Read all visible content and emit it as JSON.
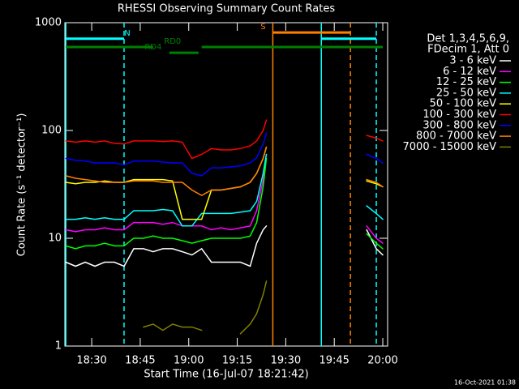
{
  "chart_data": {
    "type": "line",
    "title": "RHESSI Observing Summary Count Rates",
    "x_label": "Start Time (16-Jul-07 18:21:42)",
    "y_label": "Count Rate (s⁻¹ detector⁻¹)",
    "timestamp": "16-Oct-2021 01:38",
    "legend_title": [
      "Det 1,3,4,5,6,9,",
      "FDecim 1, Att 0"
    ],
    "y_scale": "log",
    "ylim": [
      1,
      1000
    ],
    "yticks": [
      1,
      10,
      100,
      1000
    ],
    "xlim": [
      "18:21:42",
      "20:01:30"
    ],
    "xticks": [
      "18:30",
      "18:45",
      "19:00",
      "19:15",
      "19:30",
      "19:45",
      "20:00"
    ],
    "x": [
      "18:22",
      "18:25",
      "18:28",
      "18:31",
      "18:34",
      "18:37",
      "18:40",
      "18:43",
      "18:46",
      "18:49",
      "18:52",
      "18:55",
      "18:58",
      "19:01",
      "19:04",
      "19:07",
      "19:10",
      "19:13",
      "19:16",
      "19:19",
      "19:21",
      "19:23",
      "19:24",
      "19:40",
      "19:55",
      "19:58",
      "20:00"
    ],
    "series": [
      {
        "name": "3 - 6 keV",
        "color": "#ffffff",
        "values": [
          6,
          5.5,
          6,
          5.5,
          6,
          6,
          5.5,
          8,
          8,
          7.5,
          8,
          8,
          7.5,
          7,
          8,
          6,
          6,
          6,
          6,
          5.5,
          9,
          12,
          13,
          null,
          12,
          8,
          7
        ]
      },
      {
        "name": "6 - 12 keV",
        "color": "#ff00ff",
        "values": [
          12,
          11.5,
          12,
          12,
          12.5,
          12,
          12,
          14,
          14,
          14,
          13.5,
          14,
          13,
          13,
          13,
          12,
          12.5,
          12,
          12.5,
          13,
          18,
          35,
          60,
          null,
          13,
          10,
          9
        ]
      },
      {
        "name": "12 - 25 keV",
        "color": "#00ff00",
        "values": [
          8.5,
          8,
          8.5,
          8.5,
          9,
          8.5,
          8.5,
          10,
          10,
          10.5,
          10,
          10,
          9.5,
          9,
          9.5,
          10,
          10,
          10,
          10,
          10.5,
          14,
          30,
          55,
          null,
          11,
          9,
          8
        ]
      },
      {
        "name": "25 - 50 keV",
        "color": "#00ffff",
        "values": [
          15,
          15,
          15.5,
          15,
          15.5,
          15,
          15,
          18,
          18,
          18,
          18.5,
          18,
          13,
          13,
          17,
          17,
          17,
          17,
          17.5,
          18,
          22,
          40,
          60,
          null,
          20,
          17,
          15
        ]
      },
      {
        "name": "50 - 100 keV",
        "color": "#ffff00",
        "values": [
          33,
          32,
          33,
          33,
          34,
          33,
          33,
          35,
          35,
          35,
          35,
          34,
          15,
          15,
          15,
          28,
          28,
          29,
          30,
          33,
          40,
          55,
          70,
          null,
          34,
          32,
          30
        ]
      },
      {
        "name": "100 - 300 keV",
        "color": "#ff0000",
        "values": [
          80,
          78,
          80,
          78,
          80,
          76,
          75,
          80,
          80,
          80,
          79,
          80,
          78,
          55,
          60,
          68,
          66,
          66,
          68,
          72,
          80,
          100,
          125,
          null,
          90,
          85,
          80
        ]
      },
      {
        "name": "300 - 800 keV",
        "color": "#0000ff",
        "values": [
          55,
          53,
          52,
          50,
          50,
          50,
          48,
          52,
          52,
          52,
          51,
          50,
          50,
          40,
          38,
          45,
          45,
          46,
          47,
          50,
          56,
          75,
          95,
          null,
          60,
          55,
          50
        ]
      },
      {
        "name": "800 - 7000 keV",
        "color": "#ff8000",
        "values": [
          38,
          36,
          35,
          34,
          33,
          33,
          33,
          34,
          34,
          34,
          33,
          33,
          33,
          28,
          25,
          28,
          28,
          29,
          30,
          33,
          40,
          55,
          70,
          null,
          35,
          33,
          30
        ]
      },
      {
        "name": "7000 - 15000 keV",
        "color": "#808000",
        "values": [
          null,
          null,
          null,
          null,
          null,
          null,
          null,
          null,
          1.5,
          1.6,
          1.4,
          1.6,
          1.5,
          1.5,
          1.4,
          null,
          null,
          null,
          1.3,
          1.6,
          2,
          3,
          4,
          null,
          null,
          null,
          null
        ]
      }
    ],
    "flags": [
      {
        "label": "N",
        "color": "#00ffff",
        "level": 710,
        "segments": [
          [
            "18:22",
            "18:40"
          ],
          [
            "19:41",
            "19:58"
          ]
        ],
        "label_at": "18:41"
      },
      {
        "label": "RD0",
        "color": "#008000",
        "level": 595,
        "segments": [
          [
            "18:22",
            "18:49"
          ],
          [
            "19:04",
            "20:00"
          ]
        ],
        "label_at": "18:55"
      },
      {
        "label": "RD4",
        "color": "#008000",
        "level": 526,
        "segments": [
          [
            "18:54",
            "19:03"
          ]
        ],
        "label_at": "18:49"
      },
      {
        "label": "S",
        "color": "#ff8000",
        "level": 810,
        "segments": [
          [
            "19:26",
            "19:50"
          ]
        ],
        "label_at": "19:23"
      }
    ],
    "vlines": [
      {
        "x": "18:22",
        "color": "#00ffff",
        "dashed": false
      },
      {
        "x": "18:40",
        "color": "#00ffff",
        "dashed": true
      },
      {
        "x": "19:26",
        "color": "#ff8000",
        "dashed": false
      },
      {
        "x": "19:41",
        "color": "#00ffff",
        "dashed": false
      },
      {
        "x": "19:50",
        "color": "#ff8000",
        "dashed": true
      },
      {
        "x": "19:58",
        "color": "#00ffff",
        "dashed": true
      }
    ]
  }
}
